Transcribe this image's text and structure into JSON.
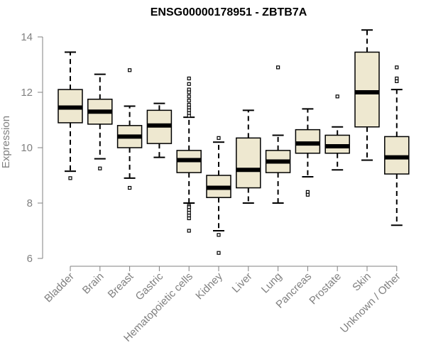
{
  "chart_data": {
    "type": "boxplot",
    "title": "ENSG00000178951 - ZBTB7A",
    "xlabel": "",
    "ylabel": "Expression",
    "ylim": [
      6,
      14
    ],
    "yticks": [
      6,
      8,
      10,
      12,
      14
    ],
    "grid": false,
    "colors": {
      "box_fill": "#eee8d0",
      "stroke": "#000000",
      "axis": "#808080",
      "title": "#000000"
    },
    "categories": [
      "Bladder",
      "Brain",
      "Breast",
      "Gastric",
      "Hematopoietic cells",
      "Kidney",
      "Liver",
      "Lung",
      "Pancreas",
      "Prostate",
      "Skin",
      "Unknown / Other"
    ],
    "boxes": [
      {
        "category": "Bladder",
        "whisker_low": 9.15,
        "q1": 10.9,
        "median": 11.45,
        "q3": 12.1,
        "whisker_high": 13.45,
        "outliers": [
          8.9
        ]
      },
      {
        "category": "Brain",
        "whisker_low": 9.6,
        "q1": 10.85,
        "median": 11.3,
        "q3": 11.75,
        "whisker_high": 12.65,
        "outliers": [
          9.25
        ]
      },
      {
        "category": "Breast",
        "whisker_low": 8.9,
        "q1": 10.0,
        "median": 10.4,
        "q3": 10.8,
        "whisker_high": 11.5,
        "outliers": [
          12.8,
          8.55
        ]
      },
      {
        "category": "Gastric",
        "whisker_low": 9.65,
        "q1": 10.15,
        "median": 10.8,
        "q3": 11.35,
        "whisker_high": 11.6,
        "outliers": []
      },
      {
        "category": "Hematopoietic cells",
        "whisker_low": 8.0,
        "q1": 9.1,
        "median": 9.55,
        "q3": 9.9,
        "whisker_high": 11.1,
        "outliers": [
          12.5,
          12.3,
          12.1,
          12.0,
          11.85,
          11.7,
          11.55,
          11.45,
          11.35,
          11.25,
          11.15,
          7.9,
          7.85,
          7.75,
          7.65,
          7.55,
          7.45,
          7.0
        ]
      },
      {
        "category": "Kidney",
        "whisker_low": 7.0,
        "q1": 8.2,
        "median": 8.55,
        "q3": 9.0,
        "whisker_high": 10.2,
        "outliers": [
          10.35,
          6.85,
          6.2
        ]
      },
      {
        "category": "Liver",
        "whisker_low": 8.0,
        "q1": 8.55,
        "median": 9.2,
        "q3": 10.35,
        "whisker_high": 11.35,
        "outliers": []
      },
      {
        "category": "Lung",
        "whisker_low": 8.0,
        "q1": 9.1,
        "median": 9.5,
        "q3": 9.9,
        "whisker_high": 10.45,
        "outliers": [
          12.9
        ]
      },
      {
        "category": "Pancreas",
        "whisker_low": 8.95,
        "q1": 9.8,
        "median": 10.15,
        "q3": 10.65,
        "whisker_high": 11.4,
        "outliers": [
          8.4,
          8.3
        ]
      },
      {
        "category": "Prostate",
        "whisker_low": 9.2,
        "q1": 9.8,
        "median": 10.05,
        "q3": 10.45,
        "whisker_high": 10.75,
        "outliers": [
          11.85
        ]
      },
      {
        "category": "Skin",
        "whisker_low": 9.55,
        "q1": 10.75,
        "median": 12.0,
        "q3": 13.45,
        "whisker_high": 14.25,
        "outliers": []
      },
      {
        "category": "Unknown / Other",
        "whisker_low": 7.2,
        "q1": 9.05,
        "median": 9.65,
        "q3": 10.4,
        "whisker_high": 12.1,
        "outliers": [
          12.9,
          12.5,
          12.4
        ]
      }
    ]
  }
}
